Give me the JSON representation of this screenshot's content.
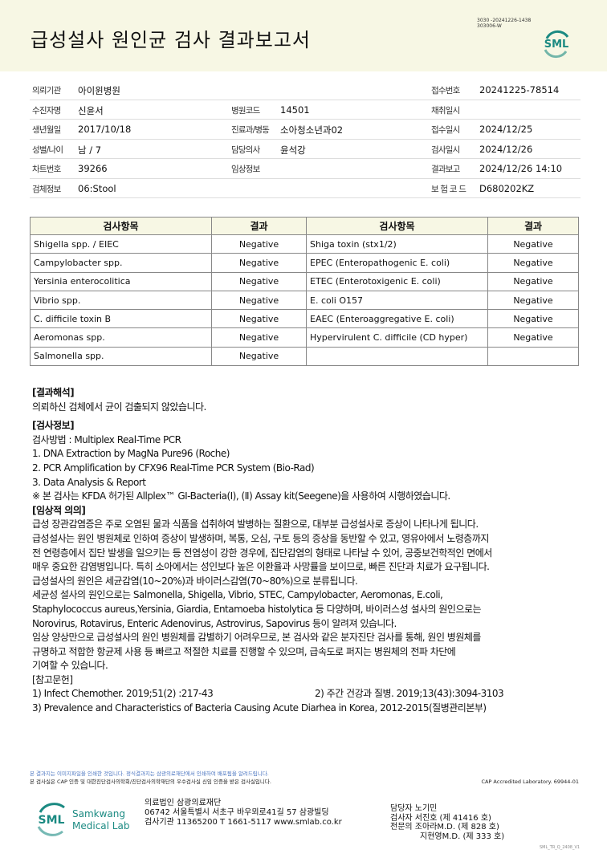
{
  "header": {
    "title": "급성설사 원인균 검사 결과보고서",
    "code_line1": "3030 -20241226-1438",
    "code_line2": "303006-W",
    "logo_text": "SML"
  },
  "info": {
    "rows": [
      [
        {
          "l": "의뢰기관",
          "v": "아이윈병원"
        },
        {
          "l": "",
          "v": ""
        },
        {
          "l": "접수번호",
          "v": "20241225-78514"
        }
      ],
      [
        {
          "l": "수진자명",
          "v": "신윤서"
        },
        {
          "l": "병원코드",
          "v": "14501"
        },
        {
          "l": "채취일시",
          "v": ""
        }
      ],
      [
        {
          "l": "생년월일",
          "v": "2017/10/18"
        },
        {
          "l": "진료과/병동",
          "v": "소아청소년과02"
        },
        {
          "l": "접수일시",
          "v": "2024/12/25"
        }
      ],
      [
        {
          "l": "성별/나이",
          "v": "남 / 7"
        },
        {
          "l": "담당의사",
          "v": "윤석강"
        },
        {
          "l": "검사일시",
          "v": "2024/12/26"
        }
      ],
      [
        {
          "l": "차트번호",
          "v": "39266"
        },
        {
          "l": "임상정보",
          "v": ""
        },
        {
          "l": "결과보고",
          "v": "2024/12/26 14:10"
        }
      ],
      [
        {
          "l": "검체정보",
          "v": "06:Stool"
        },
        {
          "l": "",
          "v": ""
        },
        {
          "l": "보 험 코 드",
          "v": "D680202KZ"
        }
      ]
    ]
  },
  "results": {
    "headers": [
      "검사항목",
      "결과",
      "검사항목",
      "결과"
    ],
    "rows": [
      [
        "Shigella spp. / EIEC",
        "Negative",
        "Shiga toxin (stx1/2)",
        "Negative"
      ],
      [
        "Campylobacter spp.",
        "Negative",
        "EPEC (Enteropathogenic E. coli)",
        "Negative"
      ],
      [
        "Yersinia enterocolitica",
        "Negative",
        "ETEC (Enterotoxigenic E. coli)",
        "Negative"
      ],
      [
        "Vibrio spp.",
        "Negative",
        "E. coli O157",
        "Negative"
      ],
      [
        "C. difficile toxin B",
        "Negative",
        "EAEC (Enteroaggregative E. coli)",
        "Negative"
      ],
      [
        "Aeromonas spp.",
        "Negative",
        "Hypervirulent C. difficile (CD hyper)",
        "Negative"
      ],
      [
        "Salmonella spp.",
        "Negative",
        "",
        ""
      ]
    ]
  },
  "body": {
    "interp_title": "[결과해석]",
    "interp": "의뢰하신 검체에서 균이 검출되지 않았습니다.",
    "info_title": "[검사정보]",
    "info_lines": [
      "검사방법 : Multiplex Real-Time PCR",
      "1. DNA Extraction by MagNa Pure96 (Roche)",
      "2. PCR Amplification by CFX96 Real-Time PCR System (Bio-Rad)",
      "3. Data Analysis & Report",
      "※ 본 검사는 KFDA 허가된 Allplex™ GI-Bacteria(Ⅰ), (Ⅱ) Assay kit(Seegene)을 사용하여 시행하였습니다."
    ],
    "clin_title": "[임상적 의의]",
    "clin_lines": [
      "급성 장관감염증은 주로 오염된 물과 식품을 섭취하여 발병하는 질환으로, 대부분 급성설사로 증상이 나타나게 됩니다.",
      "급성설사는 원인 병원체로 인하여 증상이 발생하며, 복통, 오심, 구토 등의 증상을 동반할 수 있고, 영유아에서 노령층까지",
      "전 연령층에서 집단 발생을 일으키는 등 전염성이 강한 경우에, 집단감염의 형태로 나타날 수 있어, 공중보건학적인 면에서",
      "매우 중요한 감염병입니다. 특히 소아에서는 성인보다 높은 이환율과 사망률을 보이므로, 빠른 진단과 치료가 요구됩니다.",
      "급성설사의 원인은 세균감염(10~20%)과 바이러스감염(70~80%)으로 분류됩니다.",
      "세균성 설사의 원인으로는 Salmonella, Shigella, Vibrio, STEC, Campylobacter, Aeromonas, E.coli,",
      "Staphylococcus aureus,Yersinia, Giardia, Entamoeba histolytica 등 다양하며, 바이러스성 설사의 원인으로는",
      "Norovirus, Rotavirus, Enteric Adenovirus, Astrovirus, Sapovirus 등이 알려져 있습니다.",
      "임상 양상만으로 급성설사의 원인 병원체를 감별하기 어려우므로, 본 검사와 같은 분자진단 검사를 통해, 원인 병원체를",
      "규명하고 적합한 항균제 사용 등 빠르고 적절한 치료를 진행할 수 있으며, 급속도로 퍼지는 병원체의 전파 차단에",
      "기여할 수 있습니다."
    ],
    "ref_title": "[참고문헌]",
    "ref1": "1) Infect Chemother. 2019;51(2) :217-43",
    "ref2": "2) 주간 건강과 질병. 2019;13(43):3094-3103",
    "ref3": "3) Prevalence and Characteristics of Bacteria Causing Acute Diarhea in Korea, 2012-2015(질병관리본부)"
  },
  "footer": {
    "note1": "본 결과지는 이미지파일을 인쇄한 것입니다. 정식결과지는 삼광의료재단에서 인쇄하여 배포됨을 알려드립니다.",
    "note2": "본 검사실은 CAP 인증 및 대한진단검사의학회/진단검사의학재단의 우수검사실 신임 인증을 받은 검사실입니다.",
    "cap": "CAP Accredited Laboratory. 69944-01",
    "logo_text": "SML",
    "logo_name1": "Samkwang",
    "logo_name2": "Medical Lab",
    "addr": [
      "의료법인 삼광의료재단",
      "06742 서울특별시 서초구 바우뫼로41길 57 삼광빌딩",
      "검사기관 11365200 T 1661-5117 www.smlab.co.kr"
    ],
    "sign": [
      "담당자 노기민",
      "검사자 서진호 (제 41416 호)",
      "전문의 조아라M.D. (제 828 호)",
      "지현영M.D. (제 333 호)"
    ],
    "version": "SML_TR_Q_2408_V1"
  },
  "colors": {
    "brand": "#1b8a82",
    "header_bg": "#f7f7e4",
    "note_blue": "#4a74c0"
  }
}
